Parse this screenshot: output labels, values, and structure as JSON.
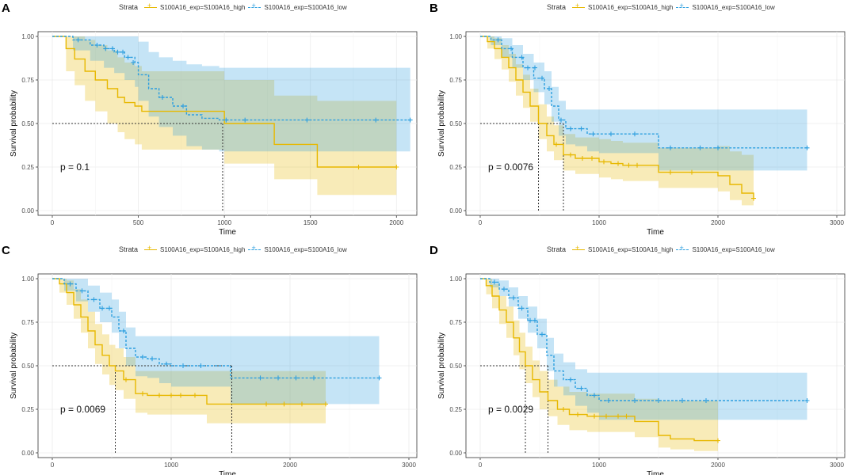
{
  "colors": {
    "high": "#E7B800",
    "low": "#2E9FDF"
  },
  "legend": {
    "title": "Strata",
    "high_label": "S100A16_exp=S100A16_high",
    "low_label": "S100A16_exp=S100A16_low"
  },
  "chart_data": [
    {
      "panel": "A",
      "type": "line",
      "xlabel": "Time",
      "ylabel": "Survival probability",
      "xlim": [
        0,
        2100
      ],
      "ylim": [
        0,
        1
      ],
      "xticks": [
        0,
        500,
        1000,
        1500,
        2000
      ],
      "yticks": [
        0.0,
        0.25,
        0.5,
        0.75,
        1.0
      ],
      "ytick_labels": [
        "0.00",
        "0.25",
        "0.50",
        "0.75",
        "1.00"
      ],
      "pvalue": "p = 0.1",
      "median_lines": [
        {
          "x": 990
        }
      ],
      "series": [
        {
          "name": "S100A16_exp=S100A16_high",
          "color": "high",
          "dashed": false,
          "x": [
            0,
            80,
            130,
            190,
            250,
            320,
            380,
            420,
            480,
            520,
            580,
            750,
            1000,
            1290,
            1540,
            2000
          ],
          "y": [
            1.0,
            0.93,
            0.87,
            0.8,
            0.75,
            0.7,
            0.65,
            0.62,
            0.6,
            0.57,
            0.57,
            0.57,
            0.5,
            0.38,
            0.25,
            0.25
          ],
          "lower": [
            1.0,
            0.8,
            0.72,
            0.63,
            0.57,
            0.5,
            0.45,
            0.41,
            0.38,
            0.35,
            0.35,
            0.35,
            0.27,
            0.18,
            0.09,
            0.09
          ],
          "upper": [
            1.0,
            1.0,
            1.0,
            0.98,
            0.95,
            0.92,
            0.88,
            0.85,
            0.83,
            0.8,
            0.8,
            0.8,
            0.75,
            0.66,
            0.63,
            0.63
          ],
          "censor_x": [
            1780,
            2000
          ],
          "censor_y": [
            0.25,
            0.25
          ]
        },
        {
          "name": "S100A16_exp=S100A16_low",
          "color": "low",
          "dashed": true,
          "x": [
            0,
            120,
            220,
            300,
            360,
            420,
            480,
            500,
            560,
            620,
            700,
            780,
            870,
            970,
            2080
          ],
          "y": [
            1.0,
            0.98,
            0.95,
            0.93,
            0.91,
            0.88,
            0.85,
            0.78,
            0.7,
            0.65,
            0.6,
            0.55,
            0.53,
            0.52,
            0.52
          ],
          "lower": [
            1.0,
            0.92,
            0.86,
            0.82,
            0.79,
            0.75,
            0.71,
            0.63,
            0.54,
            0.48,
            0.43,
            0.37,
            0.35,
            0.34,
            0.34
          ],
          "upper": [
            1.0,
            1.0,
            1.0,
            1.0,
            1.0,
            1.0,
            1.0,
            0.97,
            0.91,
            0.88,
            0.86,
            0.84,
            0.83,
            0.82,
            0.82
          ],
          "censor_x": [
            150,
            260,
            310,
            350,
            380,
            410,
            440,
            470,
            640,
            760,
            1010,
            1120,
            1480,
            1880,
            2080
          ],
          "censor_y": [
            0.98,
            0.95,
            0.93,
            0.93,
            0.91,
            0.91,
            0.88,
            0.85,
            0.65,
            0.6,
            0.52,
            0.52,
            0.52,
            0.52,
            0.52
          ]
        }
      ]
    },
    {
      "panel": "B",
      "type": "line",
      "xlabel": "Time",
      "ylabel": "Survival probability",
      "xlim": [
        0,
        3000
      ],
      "ylim": [
        0,
        1
      ],
      "xticks": [
        0,
        1000,
        2000,
        3000
      ],
      "yticks": [
        0.0,
        0.25,
        0.5,
        0.75,
        1.0
      ],
      "ytick_labels": [
        "0.00",
        "0.25",
        "0.50",
        "0.75",
        "1.00"
      ],
      "pvalue": "p = 0.0076",
      "median_lines": [
        {
          "x": 490
        },
        {
          "x": 700
        }
      ],
      "series": [
        {
          "name": "S100A16_exp=S100A16_high",
          "color": "high",
          "dashed": false,
          "x": [
            0,
            60,
            120,
            180,
            240,
            300,
            360,
            420,
            490,
            560,
            620,
            700,
            800,
            900,
            1000,
            1100,
            1200,
            1500,
            1700,
            2000,
            2100,
            2200,
            2300
          ],
          "y": [
            1.0,
            0.97,
            0.93,
            0.88,
            0.82,
            0.75,
            0.68,
            0.6,
            0.5,
            0.43,
            0.38,
            0.32,
            0.3,
            0.3,
            0.28,
            0.27,
            0.26,
            0.22,
            0.22,
            0.2,
            0.15,
            0.1,
            0.07
          ],
          "lower": [
            1.0,
            0.93,
            0.87,
            0.81,
            0.74,
            0.66,
            0.59,
            0.51,
            0.41,
            0.34,
            0.29,
            0.23,
            0.21,
            0.21,
            0.19,
            0.18,
            0.17,
            0.13,
            0.13,
            0.11,
            0.06,
            0.03,
            0.02
          ],
          "upper": [
            1.0,
            1.0,
            0.99,
            0.95,
            0.9,
            0.84,
            0.78,
            0.7,
            0.61,
            0.54,
            0.49,
            0.44,
            0.42,
            0.42,
            0.41,
            0.4,
            0.39,
            0.36,
            0.36,
            0.37,
            0.34,
            0.32,
            0.3
          ],
          "censor_x": [
            640,
            760,
            860,
            940,
            1040,
            1160,
            1250,
            1320,
            1600,
            1780,
            2300
          ],
          "censor_y": [
            0.38,
            0.32,
            0.3,
            0.3,
            0.28,
            0.27,
            0.26,
            0.26,
            0.22,
            0.22,
            0.07
          ]
        },
        {
          "name": "S100A16_exp=S100A16_low",
          "color": "low",
          "dashed": true,
          "x": [
            0,
            90,
            180,
            270,
            360,
            450,
            540,
            600,
            660,
            720,
            800,
            900,
            1000,
            1500,
            2750
          ],
          "y": [
            1.0,
            0.98,
            0.93,
            0.88,
            0.82,
            0.76,
            0.7,
            0.6,
            0.52,
            0.47,
            0.47,
            0.44,
            0.44,
            0.36,
            0.36
          ],
          "lower": [
            1.0,
            0.95,
            0.88,
            0.82,
            0.75,
            0.68,
            0.61,
            0.51,
            0.43,
            0.38,
            0.37,
            0.34,
            0.33,
            0.23,
            0.23
          ],
          "upper": [
            1.0,
            1.0,
            0.99,
            0.95,
            0.9,
            0.85,
            0.8,
            0.71,
            0.63,
            0.58,
            0.58,
            0.58,
            0.58,
            0.58,
            0.58
          ],
          "censor_x": [
            150,
            260,
            350,
            400,
            460,
            520,
            580,
            680,
            760,
            850,
            950,
            1100,
            1300,
            1600,
            1850,
            2000,
            2750
          ],
          "censor_y": [
            0.98,
            0.93,
            0.88,
            0.82,
            0.82,
            0.76,
            0.7,
            0.52,
            0.47,
            0.47,
            0.44,
            0.44,
            0.44,
            0.36,
            0.36,
            0.36,
            0.36
          ]
        }
      ]
    },
    {
      "panel": "C",
      "type": "line",
      "xlabel": "Time",
      "ylabel": "Survival probability",
      "xlim": [
        0,
        3000
      ],
      "ylim": [
        0,
        1
      ],
      "xticks": [
        0,
        1000,
        2000,
        3000
      ],
      "yticks": [
        0.0,
        0.25,
        0.5,
        0.75,
        1.0
      ],
      "ytick_labels": [
        "0.00",
        "0.25",
        "0.50",
        "0.75",
        "1.00"
      ],
      "pvalue": "p = 0.0069",
      "median_lines": [
        {
          "x": 530
        },
        {
          "x": 1510
        }
      ],
      "series": [
        {
          "name": "S100A16_exp=S100A16_high",
          "color": "high",
          "dashed": false,
          "x": [
            0,
            60,
            120,
            180,
            240,
            300,
            360,
            420,
            480,
            530,
            600,
            700,
            800,
            1000,
            1300,
            1500,
            2300
          ],
          "y": [
            1.0,
            0.97,
            0.92,
            0.85,
            0.78,
            0.7,
            0.62,
            0.56,
            0.5,
            0.47,
            0.42,
            0.34,
            0.33,
            0.33,
            0.28,
            0.28,
            0.28
          ],
          "lower": [
            1.0,
            0.92,
            0.85,
            0.77,
            0.69,
            0.6,
            0.51,
            0.45,
            0.39,
            0.36,
            0.31,
            0.23,
            0.22,
            0.22,
            0.17,
            0.17,
            0.17
          ],
          "upper": [
            1.0,
            1.0,
            0.99,
            0.94,
            0.88,
            0.81,
            0.74,
            0.68,
            0.62,
            0.6,
            0.55,
            0.47,
            0.47,
            0.47,
            0.47,
            0.47,
            0.47
          ],
          "censor_x": [
            620,
            760,
            900,
            1000,
            1080,
            1200,
            1800,
            1950,
            2100,
            2300
          ],
          "censor_y": [
            0.42,
            0.34,
            0.33,
            0.33,
            0.33,
            0.33,
            0.28,
            0.28,
            0.28,
            0.28
          ]
        },
        {
          "name": "S100A16_exp=S100A16_low",
          "color": "low",
          "dashed": true,
          "x": [
            0,
            100,
            200,
            300,
            400,
            500,
            560,
            620,
            700,
            800,
            900,
            1000,
            1500,
            2750
          ],
          "y": [
            1.0,
            0.97,
            0.93,
            0.88,
            0.83,
            0.78,
            0.7,
            0.6,
            0.55,
            0.54,
            0.51,
            0.5,
            0.43,
            0.43
          ],
          "lower": [
            1.0,
            0.93,
            0.87,
            0.81,
            0.75,
            0.69,
            0.6,
            0.5,
            0.44,
            0.43,
            0.4,
            0.38,
            0.28,
            0.28
          ],
          "upper": [
            1.0,
            1.0,
            1.0,
            0.96,
            0.92,
            0.88,
            0.81,
            0.72,
            0.67,
            0.67,
            0.67,
            0.67,
            0.67,
            0.67
          ],
          "censor_x": [
            150,
            250,
            350,
            420,
            480,
            600,
            760,
            840,
            960,
            1100,
            1250,
            1750,
            1900,
            2050,
            2200,
            2750
          ],
          "censor_y": [
            0.97,
            0.93,
            0.88,
            0.83,
            0.83,
            0.7,
            0.55,
            0.54,
            0.51,
            0.5,
            0.5,
            0.43,
            0.43,
            0.43,
            0.43,
            0.43
          ]
        }
      ]
    },
    {
      "panel": "D",
      "type": "line",
      "xlabel": "Time",
      "ylabel": "Survival probability",
      "xlim": [
        0,
        3000
      ],
      "ylim": [
        0,
        1
      ],
      "xticks": [
        0,
        1000,
        2000,
        3000
      ],
      "yticks": [
        0.0,
        0.25,
        0.5,
        0.75,
        1.0
      ],
      "ytick_labels": [
        "0.00",
        "0.25",
        "0.50",
        "0.75",
        "1.00"
      ],
      "pvalue": "p = 0.0029",
      "median_lines": [
        {
          "x": 380
        },
        {
          "x": 570
        }
      ],
      "series": [
        {
          "name": "S100A16_exp=S100A16_high",
          "color": "high",
          "dashed": false,
          "x": [
            0,
            50,
            100,
            160,
            220,
            280,
            330,
            380,
            440,
            500,
            570,
            650,
            750,
            900,
            1000,
            1300,
            1500,
            1600,
            1800,
            2000
          ],
          "y": [
            1.0,
            0.96,
            0.9,
            0.82,
            0.75,
            0.66,
            0.58,
            0.5,
            0.42,
            0.35,
            0.3,
            0.25,
            0.22,
            0.21,
            0.21,
            0.18,
            0.1,
            0.08,
            0.07,
            0.07
          ],
          "lower": [
            1.0,
            0.91,
            0.83,
            0.74,
            0.66,
            0.56,
            0.48,
            0.4,
            0.32,
            0.25,
            0.21,
            0.16,
            0.13,
            0.12,
            0.12,
            0.09,
            0.03,
            0.02,
            0.01,
            0.01
          ],
          "upper": [
            1.0,
            1.0,
            0.97,
            0.9,
            0.84,
            0.76,
            0.69,
            0.61,
            0.53,
            0.47,
            0.42,
            0.38,
            0.35,
            0.34,
            0.34,
            0.31,
            0.3,
            0.3,
            0.3,
            0.3
          ],
          "censor_x": [
            700,
            820,
            960,
            1060,
            1160,
            1230,
            2000
          ],
          "censor_y": [
            0.25,
            0.22,
            0.21,
            0.21,
            0.21,
            0.21,
            0.07
          ]
        },
        {
          "name": "S100A16_exp=S100A16_low",
          "color": "low",
          "dashed": true,
          "x": [
            0,
            80,
            160,
            240,
            320,
            400,
            480,
            560,
            620,
            700,
            800,
            900,
            1000,
            2750
          ],
          "y": [
            1.0,
            0.98,
            0.94,
            0.89,
            0.83,
            0.76,
            0.68,
            0.56,
            0.47,
            0.42,
            0.37,
            0.33,
            0.3,
            0.3
          ],
          "lower": [
            1.0,
            0.95,
            0.9,
            0.84,
            0.77,
            0.69,
            0.6,
            0.47,
            0.38,
            0.33,
            0.27,
            0.23,
            0.19,
            0.19
          ],
          "upper": [
            1.0,
            1.0,
            0.99,
            0.95,
            0.9,
            0.84,
            0.77,
            0.66,
            0.57,
            0.52,
            0.48,
            0.46,
            0.46,
            0.46
          ],
          "censor_x": [
            120,
            200,
            280,
            350,
            420,
            460,
            520,
            760,
            850,
            960,
            1080,
            1300,
            1500,
            1700,
            1900,
            2750
          ],
          "censor_y": [
            0.98,
            0.94,
            0.89,
            0.83,
            0.76,
            0.76,
            0.68,
            0.42,
            0.37,
            0.33,
            0.3,
            0.3,
            0.3,
            0.3,
            0.3,
            0.3
          ]
        }
      ]
    }
  ]
}
